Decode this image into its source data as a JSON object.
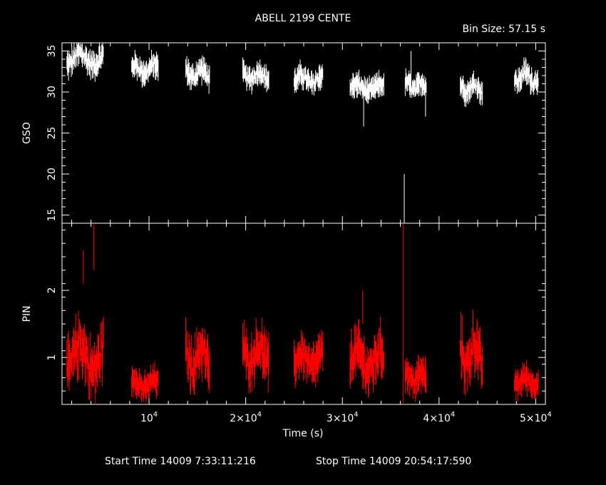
{
  "chart_data": {
    "type": "line",
    "title": "ABELL 2199 CENTE",
    "bin_size_label": "Bin Size: 57.15 s",
    "xlabel": "Time (s)",
    "x_range": [
      1000,
      51000
    ],
    "x_ticks": [
      {
        "value": 10000,
        "mant": "10",
        "exp": "4",
        "prefix": ""
      },
      {
        "value": 20000,
        "mant": "2×10",
        "exp": "4",
        "prefix": ""
      },
      {
        "value": 30000,
        "mant": "3×10",
        "exp": "4",
        "prefix": ""
      },
      {
        "value": 40000,
        "mant": "4×10",
        "exp": "4",
        "prefix": ""
      },
      {
        "value": 50000,
        "mant": "5×10",
        "exp": "4",
        "prefix": ""
      }
    ],
    "footer": {
      "start": "Start Time 14009  7:33:11:216",
      "stop": "Stop Time 14009 20:54:17:590"
    },
    "panels": [
      {
        "name": "GSO",
        "ylabel": "GSO",
        "ylim": [
          14,
          36
        ],
        "yticks": [
          15,
          20,
          25,
          30,
          35
        ],
        "color": "#ffffff",
        "segments": [
          {
            "t0": 1500,
            "t1": 5300,
            "level": 34.0,
            "amp": 1.2,
            "err": 1.0
          },
          {
            "t0": 8200,
            "t1": 11000,
            "level": 32.8,
            "amp": 0.9,
            "err": 1.0
          },
          {
            "t0": 13800,
            "t1": 16300,
            "level": 32.3,
            "amp": 0.9,
            "err": 1.0
          },
          {
            "t0": 19700,
            "t1": 22400,
            "level": 32.0,
            "amp": 0.8,
            "err": 1.0
          },
          {
            "t0": 25000,
            "t1": 28000,
            "level": 31.5,
            "amp": 0.9,
            "err": 1.0
          },
          {
            "t0": 30800,
            "t1": 34300,
            "level": 30.5,
            "amp": 0.7,
            "err": 1.0
          },
          {
            "t0": 36500,
            "t1": 38700,
            "level": 30.7,
            "amp": 0.8,
            "err": 1.0
          },
          {
            "t0": 42200,
            "t1": 44500,
            "level": 30.5,
            "amp": 0.8,
            "err": 1.0
          },
          {
            "t0": 47800,
            "t1": 50300,
            "level": 31.8,
            "amp": 1.0,
            "err": 1.0
          }
        ],
        "spikes": [
          {
            "t": 32200,
            "lo": 25.8,
            "hi": 31.0
          },
          {
            "t": 36400,
            "lo": 14.0,
            "hi": 20.0
          },
          {
            "t": 37100,
            "lo": 30.0,
            "hi": 35.0
          },
          {
            "t": 38600,
            "lo": 27.0,
            "hi": 29.5
          }
        ]
      },
      {
        "name": "PIN",
        "ylabel": "PIN",
        "ylim": [
          0.3,
          3.0
        ],
        "yticks": [
          1,
          2
        ],
        "color": "#ff0000",
        "segments": [
          {
            "t0": 1500,
            "t1": 5300,
            "level": 1.0,
            "amp": 0.35,
            "err": 0.25
          },
          {
            "t0": 8200,
            "t1": 11000,
            "level": 0.6,
            "amp": 0.12,
            "err": 0.15
          },
          {
            "t0": 13800,
            "t1": 16300,
            "level": 1.0,
            "amp": 0.25,
            "err": 0.25
          },
          {
            "t0": 19700,
            "t1": 22400,
            "level": 1.05,
            "amp": 0.22,
            "err": 0.25
          },
          {
            "t0": 25000,
            "t1": 28000,
            "level": 0.95,
            "amp": 0.18,
            "err": 0.22
          },
          {
            "t0": 30800,
            "t1": 34300,
            "level": 0.95,
            "amp": 0.25,
            "err": 0.25
          },
          {
            "t0": 36500,
            "t1": 38700,
            "level": 0.7,
            "amp": 0.12,
            "err": 0.18
          },
          {
            "t0": 42200,
            "t1": 44500,
            "level": 1.05,
            "amp": 0.3,
            "err": 0.25
          },
          {
            "t0": 47800,
            "t1": 50300,
            "level": 0.65,
            "amp": 0.1,
            "err": 0.15
          }
        ],
        "spikes": [
          {
            "t": 3200,
            "lo": 2.1,
            "hi": 2.6
          },
          {
            "t": 4300,
            "lo": 2.3,
            "hi": 3.0
          },
          {
            "t": 36300,
            "lo": 0.3,
            "hi": 3.0
          },
          {
            "t": 32100,
            "lo": 1.5,
            "hi": 2.0
          }
        ]
      }
    ]
  }
}
